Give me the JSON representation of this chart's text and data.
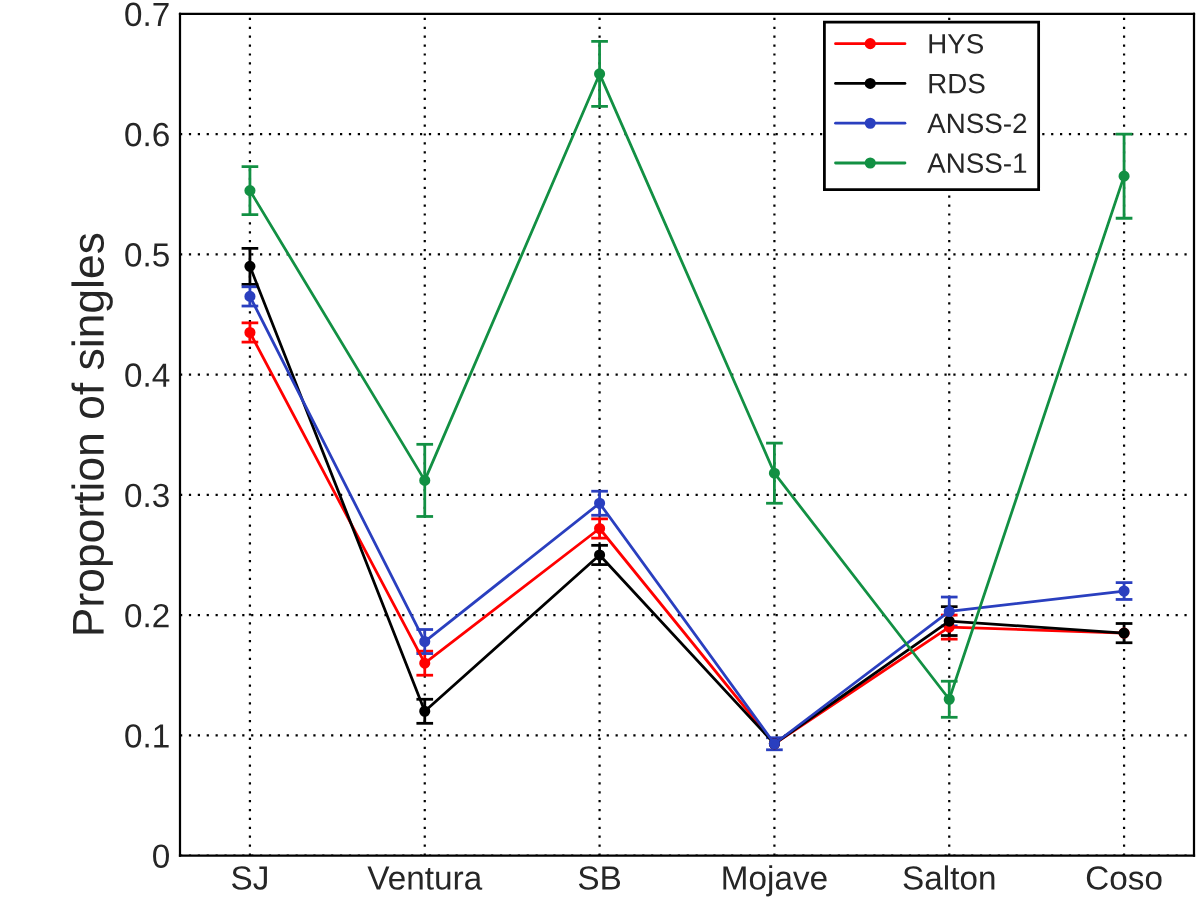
{
  "chart_data": {
    "type": "line",
    "ylabel": "Proportion of singles",
    "categories": [
      "SJ",
      "Ventura",
      "SB",
      "Mojave",
      "Salton",
      "Coso"
    ],
    "series": [
      {
        "name": "HYS",
        "color": "#ff0000",
        "values": [
          0.435,
          0.16,
          0.272,
          0.093,
          0.19,
          0.185
        ],
        "errors": [
          0.008,
          0.01,
          0.008,
          null,
          0.01,
          null
        ]
      },
      {
        "name": "RDS",
        "color": "#000000",
        "values": [
          0.49,
          0.12,
          0.25,
          0.093,
          0.195,
          0.185
        ],
        "errors": [
          0.015,
          0.01,
          0.008,
          null,
          0.012,
          0.008
        ]
      },
      {
        "name": "ANSS-2",
        "color": "#2a3fbf",
        "values": [
          0.465,
          0.178,
          0.293,
          0.093,
          0.203,
          0.22
        ],
        "errors": [
          0.008,
          0.01,
          0.01,
          0.005,
          0.012,
          0.007
        ]
      },
      {
        "name": "ANSS-1",
        "color": "#129043",
        "values": [
          0.553,
          0.312,
          0.65,
          0.318,
          0.13,
          0.565
        ],
        "errors": [
          0.02,
          0.03,
          0.027,
          0.025,
          0.015,
          0.035
        ]
      }
    ],
    "ylim": [
      0,
      0.7
    ],
    "yticks": [
      0,
      0.1,
      0.2,
      0.3,
      0.4,
      0.5,
      0.6,
      0.7
    ],
    "grid": true,
    "legend": "top right",
    "marker": "circle",
    "line_style": "solid"
  }
}
